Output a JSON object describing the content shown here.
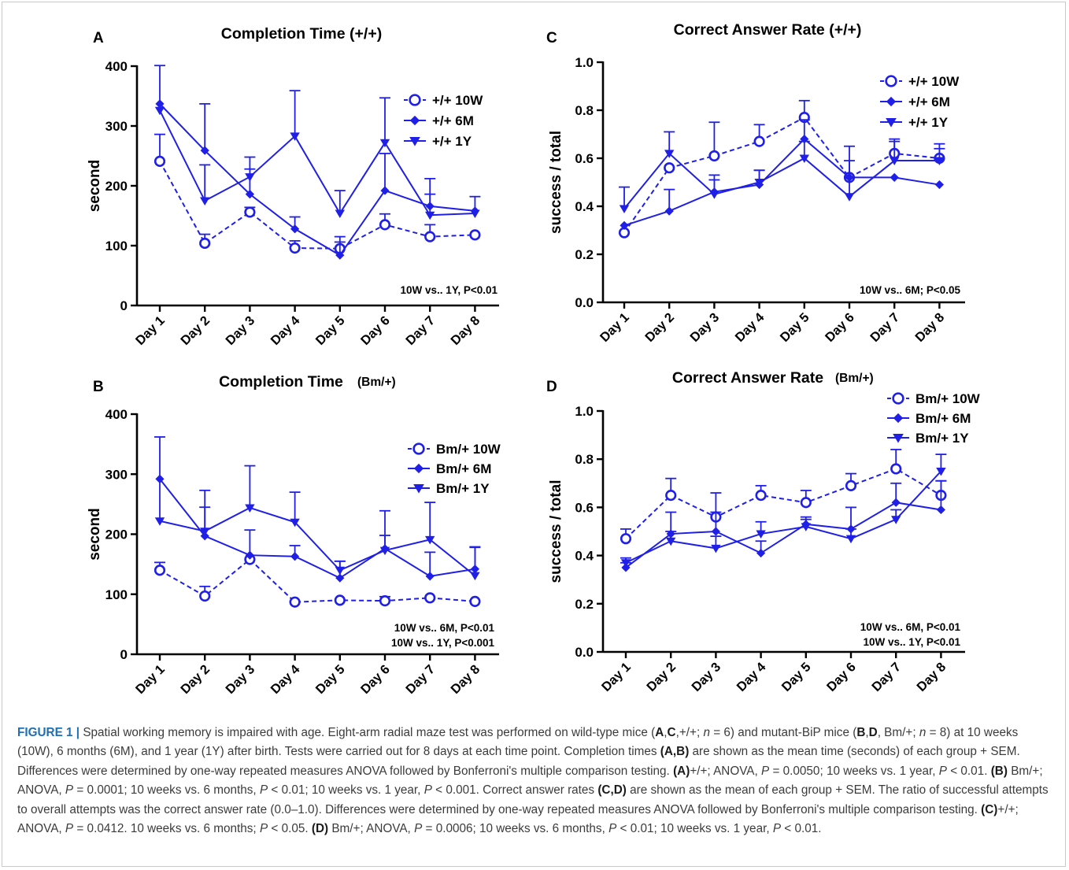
{
  "charts": [
    {
      "panel_letter": "A",
      "title_main": "Completion Time (+/+)",
      "title_suffix": "",
      "ylabel": "second",
      "stat_lines": [
        "10W vs.. 1Y, P<0.01"
      ],
      "ymax_label": "400"
    },
    {
      "panel_letter": "C",
      "title_main": "Correct Answer Rate (+/+)",
      "title_suffix": "",
      "ylabel": "success / total",
      "stat_lines": [
        "10W vs.. 6M; P<0.05"
      ]
    },
    {
      "panel_letter": "B",
      "title_main": "Completion Time",
      "title_suffix": "(Bm/+)",
      "ylabel": "second",
      "stat_lines": [
        "10W vs.. 6M, P<0.01",
        "10W vs.. 1Y, P<0.001"
      ]
    },
    {
      "panel_letter": "D",
      "title_main": "Correct Answer Rate",
      "title_suffix": "(Bm/+)",
      "ylabel": "success / total",
      "stat_lines": [
        "10W vs.. 6M, P<0.01",
        "10W vs.. 1Y, P<0.01"
      ]
    }
  ],
  "chart_data": [
    {
      "type": "line",
      "title": "Completion Time (+/+)",
      "xlabel": "",
      "ylabel": "second",
      "x": [
        "Day 1",
        "Day 2",
        "Day 3",
        "Day 4",
        "Day 5",
        "Day 6",
        "Day 7",
        "Day 8"
      ],
      "ylim": [
        0,
        400
      ],
      "yticks": [
        "0",
        "100",
        "200",
        "300",
        "400"
      ],
      "grid": false,
      "legend_position": "top-right",
      "series": [
        {
          "name": "+/+ 10W",
          "marker": "circle",
          "dashed": true,
          "values": [
            241,
            104,
            156,
            96,
            95,
            135,
            115,
            118
          ],
          "err": [
            45,
            15,
            8,
            12,
            20,
            18,
            20,
            0
          ]
        },
        {
          "name": "+/+ 6M",
          "marker": "diamond",
          "dashed": false,
          "values": [
            337,
            259,
            186,
            128,
            84,
            192,
            166,
            158
          ],
          "err": [
            0,
            78,
            42,
            20,
            22,
            62,
            46,
            24
          ]
        },
        {
          "name": "+/+ 1Y",
          "marker": "triangle-down",
          "dashed": false,
          "values": [
            326,
            175,
            215,
            283,
            154,
            272,
            151,
            154
          ],
          "err": [
            75,
            60,
            33,
            76,
            38,
            75,
            35,
            0
          ]
        }
      ]
    },
    {
      "type": "line",
      "title": "Correct Answer Rate (+/+)",
      "xlabel": "",
      "ylabel": "success / total",
      "x": [
        "Day 1",
        "Day 2",
        "Day 3",
        "Day 4",
        "Day 5",
        "Day 6",
        "Day 7",
        "Day 8"
      ],
      "ylim": [
        0,
        1
      ],
      "yticks": [
        "0.0",
        "0.2",
        "0.4",
        "0.6",
        "0.8",
        "1.0"
      ],
      "grid": false,
      "legend_position": "top-right",
      "series": [
        {
          "name": "+/+ 10W",
          "marker": "circle",
          "dashed": true,
          "values": [
            0.29,
            0.56,
            0.61,
            0.67,
            0.77,
            0.52,
            0.62,
            0.6
          ],
          "err": [
            0,
            0,
            0.14,
            0.07,
            0.07,
            0.13,
            0.05,
            0.06
          ]
        },
        {
          "name": "+/+ 6M",
          "marker": "diamond",
          "dashed": false,
          "values": [
            0.32,
            0.38,
            0.46,
            0.49,
            0.68,
            0.52,
            0.52,
            0.49
          ],
          "err": [
            0,
            0.09,
            0.07,
            0.06,
            0.08,
            0.07,
            0,
            0
          ]
        },
        {
          "name": "+/+ 1Y",
          "marker": "triangle-down",
          "dashed": false,
          "values": [
            0.39,
            0.62,
            0.45,
            0.5,
            0.6,
            0.44,
            0.59,
            0.59
          ],
          "err": [
            0.09,
            0.09,
            0.06,
            0.05,
            0.07,
            0.08,
            0.09,
            0.05
          ]
        }
      ]
    },
    {
      "type": "line",
      "title": "Completion Time (Bm/+)",
      "xlabel": "",
      "ylabel": "second",
      "x": [
        "Day 1",
        "Day 2",
        "Day 3",
        "Day 4",
        "Day 5",
        "Day 6",
        "Day 7",
        "Day 8"
      ],
      "ylim": [
        0,
        400
      ],
      "yticks": [
        "0",
        "100",
        "200",
        "300",
        "400"
      ],
      "grid": false,
      "legend_position": "right",
      "series": [
        {
          "name": "Bm/+ 10W",
          "marker": "circle",
          "dashed": true,
          "values": [
            140,
            97,
            158,
            87,
            90,
            89,
            94,
            88
          ],
          "err": [
            13,
            16,
            0,
            0,
            0,
            7,
            0,
            0
          ]
        },
        {
          "name": "Bm/+ 6M",
          "marker": "diamond",
          "dashed": false,
          "values": [
            292,
            197,
            165,
            163,
            127,
            176,
            130,
            142
          ],
          "err": [
            0,
            48,
            42,
            18,
            28,
            63,
            40,
            36
          ]
        },
        {
          "name": "Bm/+ 1Y",
          "marker": "triangle-down",
          "dashed": false,
          "values": [
            222,
            205,
            244,
            220,
            140,
            173,
            191,
            131
          ],
          "err": [
            140,
            68,
            70,
            50,
            15,
            25,
            62,
            48
          ]
        }
      ]
    },
    {
      "type": "line",
      "title": "Correct Answer Rate (Bm/+)",
      "xlabel": "",
      "ylabel": "success / total",
      "x": [
        "Day 1",
        "Day 2",
        "Day 3",
        "Day 4",
        "Day 5",
        "Day 6",
        "Day 7",
        "Day 8"
      ],
      "ylim": [
        0,
        1
      ],
      "yticks": [
        "0.0",
        "0.2",
        "0.4",
        "0.6",
        "0.8",
        "1.0"
      ],
      "grid": false,
      "legend_position": "top-right",
      "series": [
        {
          "name": "Bm/+ 10W",
          "marker": "circle",
          "dashed": true,
          "values": [
            0.47,
            0.65,
            0.56,
            0.65,
            0.62,
            0.69,
            0.76,
            0.65
          ],
          "err": [
            0.04,
            0.07,
            0.1,
            0.04,
            0.05,
            0.05,
            0.08,
            0.06
          ]
        },
        {
          "name": "Bm/+ 6M",
          "marker": "diamond",
          "dashed": false,
          "values": [
            0.35,
            0.49,
            0.5,
            0.41,
            0.53,
            0.51,
            0.62,
            0.59
          ],
          "err": [
            0.02,
            0.09,
            0.08,
            0.05,
            0.03,
            0.09,
            0.08,
            0.12
          ]
        },
        {
          "name": "Bm/+ 1Y",
          "marker": "triangle-down",
          "dashed": false,
          "values": [
            0.37,
            0.46,
            0.43,
            0.49,
            0.52,
            0.47,
            0.55,
            0.75
          ],
          "err": [
            0.02,
            0.04,
            0.05,
            0.05,
            0.03,
            0.04,
            0.04,
            0.07
          ]
        }
      ]
    }
  ],
  "style": {
    "series_color": "#1f1fe8",
    "axis_color": "#000000",
    "caption_label_color": "#1f6fb3"
  },
  "caption": {
    "label": "FIGURE 1 |",
    "segments": [
      {
        "t": " Spatial working memory is impaired with age. Eight-arm radial maze test was performed on wild-type mice ("
      },
      {
        "t": "A",
        "b": true
      },
      {
        "t": ","
      },
      {
        "t": "C",
        "b": true
      },
      {
        "t": ",+/+; "
      },
      {
        "t": "n",
        "i": true
      },
      {
        "t": " = 6) and mutant-BiP mice ("
      },
      {
        "t": "B",
        "b": true
      },
      {
        "t": ","
      },
      {
        "t": "D",
        "b": true
      },
      {
        "t": ", Bm/+; "
      },
      {
        "t": "n",
        "i": true
      },
      {
        "t": " = 8) at 10 weeks (10W), 6 months (6M), and 1 year (1Y) after birth. Tests were carried out for 8 days at each time point. Completion times "
      },
      {
        "t": "(A,B)",
        "b": true
      },
      {
        "t": " are shown as the mean time (seconds) of each group + SEM. Differences were determined by one-way repeated measures ANOVA followed by Bonferroni's multiple comparison testing. "
      },
      {
        "t": "(A)",
        "b": true
      },
      {
        "t": "+/+; ANOVA, "
      },
      {
        "t": "P",
        "i": true
      },
      {
        "t": " = 0.0050; 10 weeks vs. 1 year, "
      },
      {
        "t": "P",
        "i": true
      },
      {
        "t": " < 0.01. "
      },
      {
        "t": "(B)",
        "b": true
      },
      {
        "t": " Bm/+; ANOVA, "
      },
      {
        "t": "P",
        "i": true
      },
      {
        "t": " = 0.0001; 10 weeks vs. 6 months, "
      },
      {
        "t": "P",
        "i": true
      },
      {
        "t": " < 0.01; 10 weeks vs. 1 year, "
      },
      {
        "t": "P",
        "i": true
      },
      {
        "t": " < 0.001. Correct answer rates "
      },
      {
        "t": "(C,D)",
        "b": true
      },
      {
        "t": " are shown as the mean of each group + SEM. The ratio of successful attempts to overall attempts was the correct answer rate (0.0–1.0). Differences were determined by one-way repeated measures ANOVA followed by Bonferroni's multiple comparison testing. "
      },
      {
        "t": "(C)",
        "b": true
      },
      {
        "t": "+/+; ANOVA, "
      },
      {
        "t": "P",
        "i": true
      },
      {
        "t": " = 0.0412. 10 weeks vs. 6 months; "
      },
      {
        "t": "P",
        "i": true
      },
      {
        "t": " < 0.05. "
      },
      {
        "t": "(D)",
        "b": true
      },
      {
        "t": " Bm/+; ANOVA, "
      },
      {
        "t": "P",
        "i": true
      },
      {
        "t": " = 0.0006; 10 weeks vs. 6 months, "
      },
      {
        "t": "P",
        "i": true
      },
      {
        "t": " < 0.01; 10 weeks vs. 1 year, "
      },
      {
        "t": "P",
        "i": true
      },
      {
        "t": " < 0.01."
      }
    ]
  }
}
